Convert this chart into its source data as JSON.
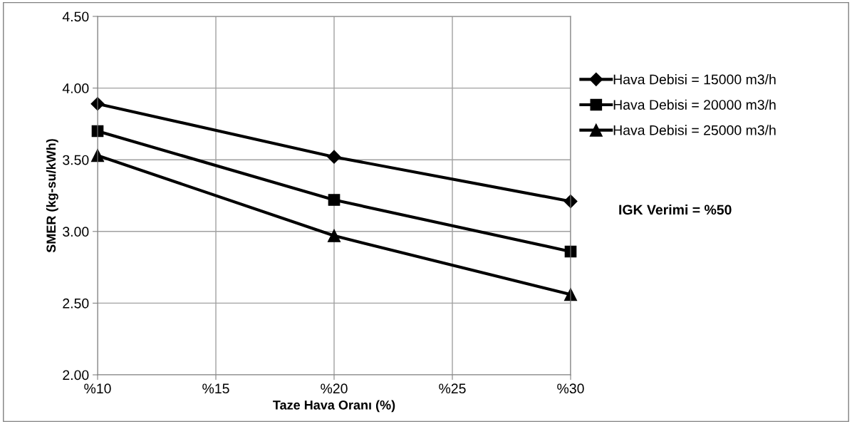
{
  "chart_data": {
    "type": "line",
    "xlabel": "Taze Hava Oranı (%)",
    "ylabel": "SMER (kg-su/kWh)",
    "x": [
      10,
      20,
      30
    ],
    "series": [
      {
        "name": "Hava Debisi = 15000 m3/h",
        "color": "#000000",
        "marker": "diamond",
        "values": [
          3.89,
          3.52,
          3.21
        ]
      },
      {
        "name": "Hava Debisi = 20000 m3/h",
        "color": "#000000",
        "marker": "square",
        "values": [
          3.7,
          3.22,
          2.86
        ]
      },
      {
        "name": "Hava Debisi = 25000 m3/h",
        "color": "#000000",
        "marker": "triangle",
        "values": [
          3.53,
          2.97,
          2.56
        ]
      }
    ],
    "xlim": [
      10,
      30
    ],
    "xticks": [
      {
        "value": 10,
        "label": "%10"
      },
      {
        "value": 15,
        "label": "%15"
      },
      {
        "value": 20,
        "label": "%20"
      },
      {
        "value": 25,
        "label": "%25"
      },
      {
        "value": 30,
        "label": "%30"
      }
    ],
    "ylim": [
      2.0,
      4.5
    ],
    "yticks": [
      {
        "value": 2.0,
        "label": "2.00"
      },
      {
        "value": 2.5,
        "label": "2.50"
      },
      {
        "value": 3.0,
        "label": "3.00"
      },
      {
        "value": 3.5,
        "label": "3.50"
      },
      {
        "value": 4.0,
        "label": "4.00"
      },
      {
        "value": 4.5,
        "label": "4.50"
      }
    ],
    "grid": true,
    "legend": "right",
    "line_style": "solid",
    "annotations": [
      "IGK Verimi = %50"
    ]
  }
}
